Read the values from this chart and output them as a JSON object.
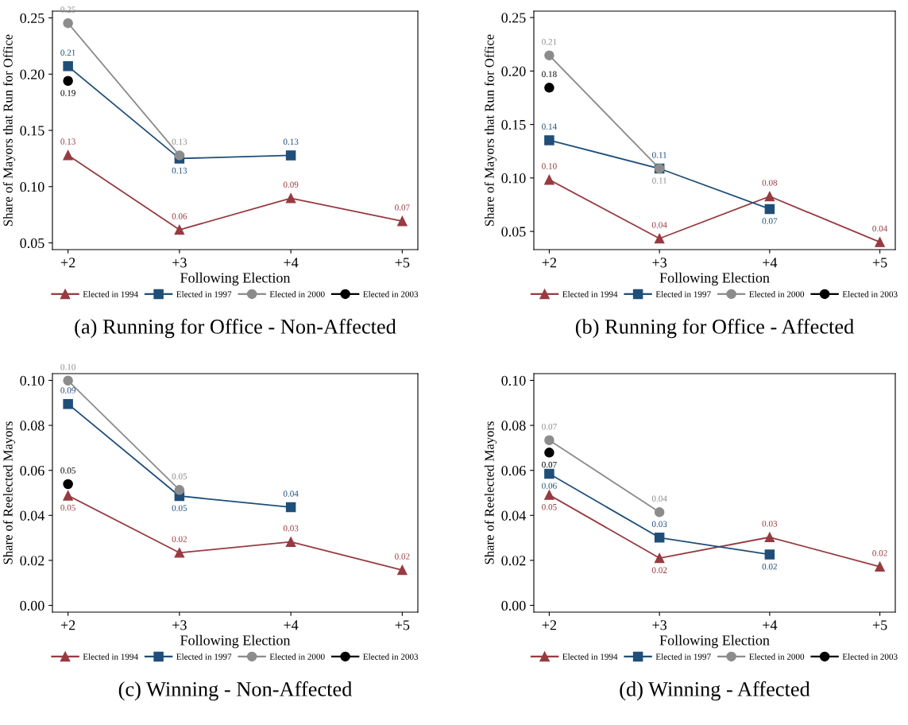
{
  "chart_data": [
    {
      "type": "line",
      "title": "(a) Running for Office - Non-Affected",
      "xlabel": "Following Election",
      "ylabel": "Share of Mayors that Run for Office",
      "categories": [
        "+2",
        "+3",
        "+4",
        "+5"
      ],
      "ylim": [
        0.044,
        0.256
      ],
      "yticks": [
        0.05,
        {
          "value": 0.1,
          "label": "0.10"
        },
        0.15,
        {
          "value": 0.2,
          "label": "0.20"
        },
        0.25
      ],
      "grid": false,
      "legend": "bottom",
      "series": [
        {
          "name": "Elected in 1994",
          "color": "#973b41",
          "marker": "triangle",
          "values": [
            0.128,
            0.0616,
            0.0897,
            0.0693
          ],
          "value_labels": [
            "0.13",
            "0.06",
            "0.09",
            "0.07"
          ]
        },
        {
          "name": "Elected in 1997",
          "color": "#1f4e79",
          "marker": "square",
          "values": [
            0.207,
            0.125,
            0.1278,
            null
          ],
          "value_labels": [
            "0.21",
            "0.13",
            "0.13",
            null
          ]
        },
        {
          "name": "Elected in 2000",
          "color": "#8c8c8c",
          "marker": "circle",
          "values": [
            0.2453,
            0.1278,
            null,
            null
          ],
          "value_labels": [
            "0.25",
            "0.13",
            null,
            null
          ]
        },
        {
          "name": "Elected in 2003",
          "color": "#000000",
          "marker": "circle",
          "values": [
            0.194,
            null,
            null,
            null
          ],
          "value_labels": [
            "0.19",
            null,
            null,
            null
          ]
        }
      ]
    },
    {
      "type": "line",
      "title": "(b) Running for Office - Affected",
      "xlabel": "Following Election",
      "ylabel": "Share of Mayors that Run for Office",
      "categories": [
        "+2",
        "+3",
        "+4",
        "+5"
      ],
      "ylim": [
        0.033,
        0.256
      ],
      "yticks": [
        0.05,
        {
          "value": 0.1,
          "label": "0.10"
        },
        0.15,
        {
          "value": 0.2,
          "label": "0.20"
        },
        0.25
      ],
      "grid": false,
      "legend": "bottom",
      "series": [
        {
          "name": "Elected in 1994",
          "color": "#973b41",
          "marker": "triangle",
          "values": [
            0.0983,
            0.0434,
            0.0828,
            0.04
          ],
          "value_labels": [
            "0.10",
            "0.04",
            "0.08",
            "0.04"
          ]
        },
        {
          "name": "Elected in 1997",
          "color": "#1f4e79",
          "marker": "square",
          "values": [
            0.1353,
            0.1088,
            0.071,
            null
          ],
          "value_labels": [
            "0.14",
            "0.11",
            "0.07",
            null
          ]
        },
        {
          "name": "Elected in 2000",
          "color": "#8c8c8c",
          "marker": "circle",
          "values": [
            0.2146,
            0.1088,
            null,
            null
          ],
          "value_labels": [
            "0.21",
            "0.11",
            null,
            null
          ]
        },
        {
          "name": "Elected in 2003",
          "color": "#000000",
          "marker": "circle",
          "values": [
            0.1844,
            null,
            null,
            null
          ],
          "value_labels": [
            "0.18",
            null,
            null,
            null
          ]
        }
      ]
    },
    {
      "type": "line",
      "title": "(c) Winning - Non-Affected",
      "xlabel": "Following Election",
      "ylabel": "Share of Reelected Mayors",
      "categories": [
        "+2",
        "+3",
        "+4",
        "+5"
      ],
      "ylim": [
        -0.003,
        0.103
      ],
      "yticks": [
        {
          "value": 0,
          "label": "0.00"
        },
        0.02,
        0.04,
        0.06,
        0.08,
        {
          "value": 0.1,
          "label": "0.10"
        }
      ],
      "grid": false,
      "legend": "bottom",
      "series": [
        {
          "name": "Elected in 1994",
          "color": "#973b41",
          "marker": "triangle",
          "values": [
            0.0488,
            0.0234,
            0.0282,
            0.0157
          ],
          "value_labels": [
            "0.05",
            "0.02",
            "0.03",
            "0.02"
          ]
        },
        {
          "name": "Elected in 1997",
          "color": "#1f4e79",
          "marker": "square",
          "values": [
            0.0895,
            0.0486,
            0.0436,
            null
          ],
          "value_labels": [
            "0.09",
            "0.05",
            "0.04",
            null
          ]
        },
        {
          "name": "Elected in 2000",
          "color": "#8c8c8c",
          "marker": "circle",
          "values": [
            0.0999,
            0.0513,
            null,
            null
          ],
          "value_labels": [
            "0.10",
            "0.05",
            null,
            null
          ]
        },
        {
          "name": "Elected in 2003",
          "color": "#000000",
          "marker": "circle",
          "values": [
            0.0539,
            null,
            null,
            null
          ],
          "value_labels": [
            "0.05",
            null,
            null,
            null
          ]
        }
      ]
    },
    {
      "type": "line",
      "title": "(d) Winning - Affected",
      "xlabel": "Following Election",
      "ylabel": "Share of Reelected Mayors",
      "categories": [
        "+2",
        "+3",
        "+4",
        "+5"
      ],
      "ylim": [
        -0.003,
        0.103
      ],
      "yticks": [
        {
          "value": 0,
          "label": "0.00"
        },
        0.02,
        0.04,
        0.06,
        0.08,
        {
          "value": 0.1,
          "label": "0.10"
        }
      ],
      "grid": false,
      "legend": "bottom",
      "series": [
        {
          "name": "Elected in 1994",
          "color": "#973b41",
          "marker": "triangle",
          "values": [
            0.0491,
            0.021,
            0.0303,
            0.0172
          ],
          "value_labels": [
            "0.05",
            "0.02",
            "0.03",
            "0.02"
          ]
        },
        {
          "name": "Elected in 1997",
          "color": "#1f4e79",
          "marker": "square",
          "values": [
            0.0585,
            0.0301,
            0.0226,
            null
          ],
          "value_labels": [
            "0.06",
            "0.03",
            "0.02",
            null
          ]
        },
        {
          "name": "Elected in 2000",
          "color": "#8c8c8c",
          "marker": "circle",
          "values": [
            0.0734,
            0.0414,
            null,
            null
          ],
          "value_labels": [
            "0.07",
            "0.04",
            null,
            null
          ]
        },
        {
          "name": "Elected in 2003",
          "color": "#000000",
          "marker": "circle",
          "values": [
            0.0679,
            null,
            null,
            null
          ],
          "value_labels": [
            "0.07",
            null,
            null,
            null
          ]
        }
      ]
    }
  ]
}
